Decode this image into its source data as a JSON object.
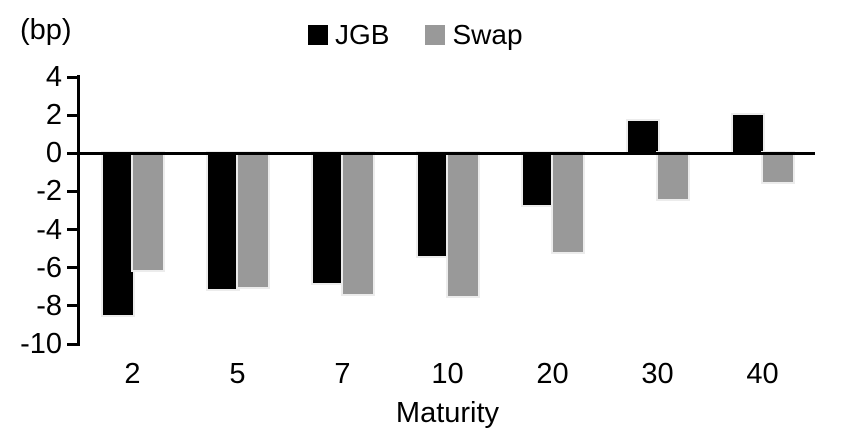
{
  "chart_data": {
    "type": "bar",
    "title": "",
    "unit_label": "(bp)",
    "xlabel": "Maturity",
    "ylabel": "",
    "categories": [
      "2",
      "5",
      "7",
      "10",
      "20",
      "30",
      "40"
    ],
    "series": [
      {
        "name": "JGB",
        "color": "#000000",
        "values": [
          -8.5,
          -7.1,
          -6.8,
          -5.4,
          -2.7,
          1.7,
          2.0
        ]
      },
      {
        "name": "Swap",
        "color": "#999999",
        "values": [
          -6.1,
          -7.0,
          -7.4,
          -7.5,
          -5.2,
          -2.4,
          -1.5
        ]
      }
    ],
    "y_ticks": [
      4,
      2,
      0,
      -2,
      -4,
      -6,
      -8,
      -10
    ],
    "ylim": [
      -10,
      4
    ],
    "grid": false,
    "legend_position": "top",
    "axis_color": "#000000",
    "background_color": "#ffffff"
  }
}
